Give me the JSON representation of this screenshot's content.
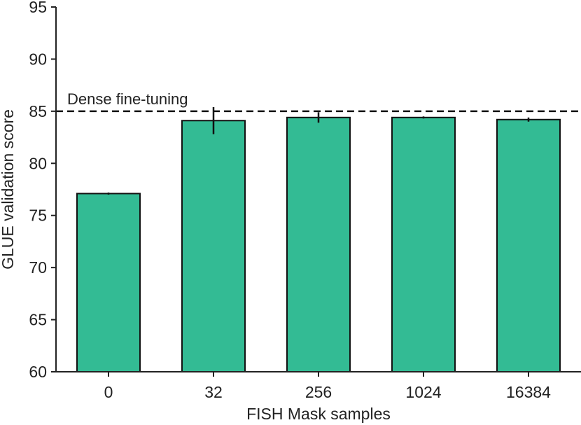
{
  "chart_data": {
    "type": "bar",
    "title": "",
    "xlabel": "FISH Mask samples",
    "ylabel": "GLUE validation score",
    "categories": [
      "0",
      "32",
      "256",
      "1024",
      "16384"
    ],
    "values": [
      77.1,
      84.1,
      84.4,
      84.4,
      84.2
    ],
    "errors": [
      0.1,
      1.3,
      0.5,
      0.1,
      0.2
    ],
    "ylim": [
      60,
      95
    ],
    "yticks": [
      "60",
      "65",
      "70",
      "75",
      "80",
      "85",
      "90",
      "95"
    ],
    "grid": false,
    "bar_color": "#33bb94",
    "reference_line": {
      "label": "Dense fine-tuning",
      "value": 85,
      "style": "dashed"
    }
  }
}
